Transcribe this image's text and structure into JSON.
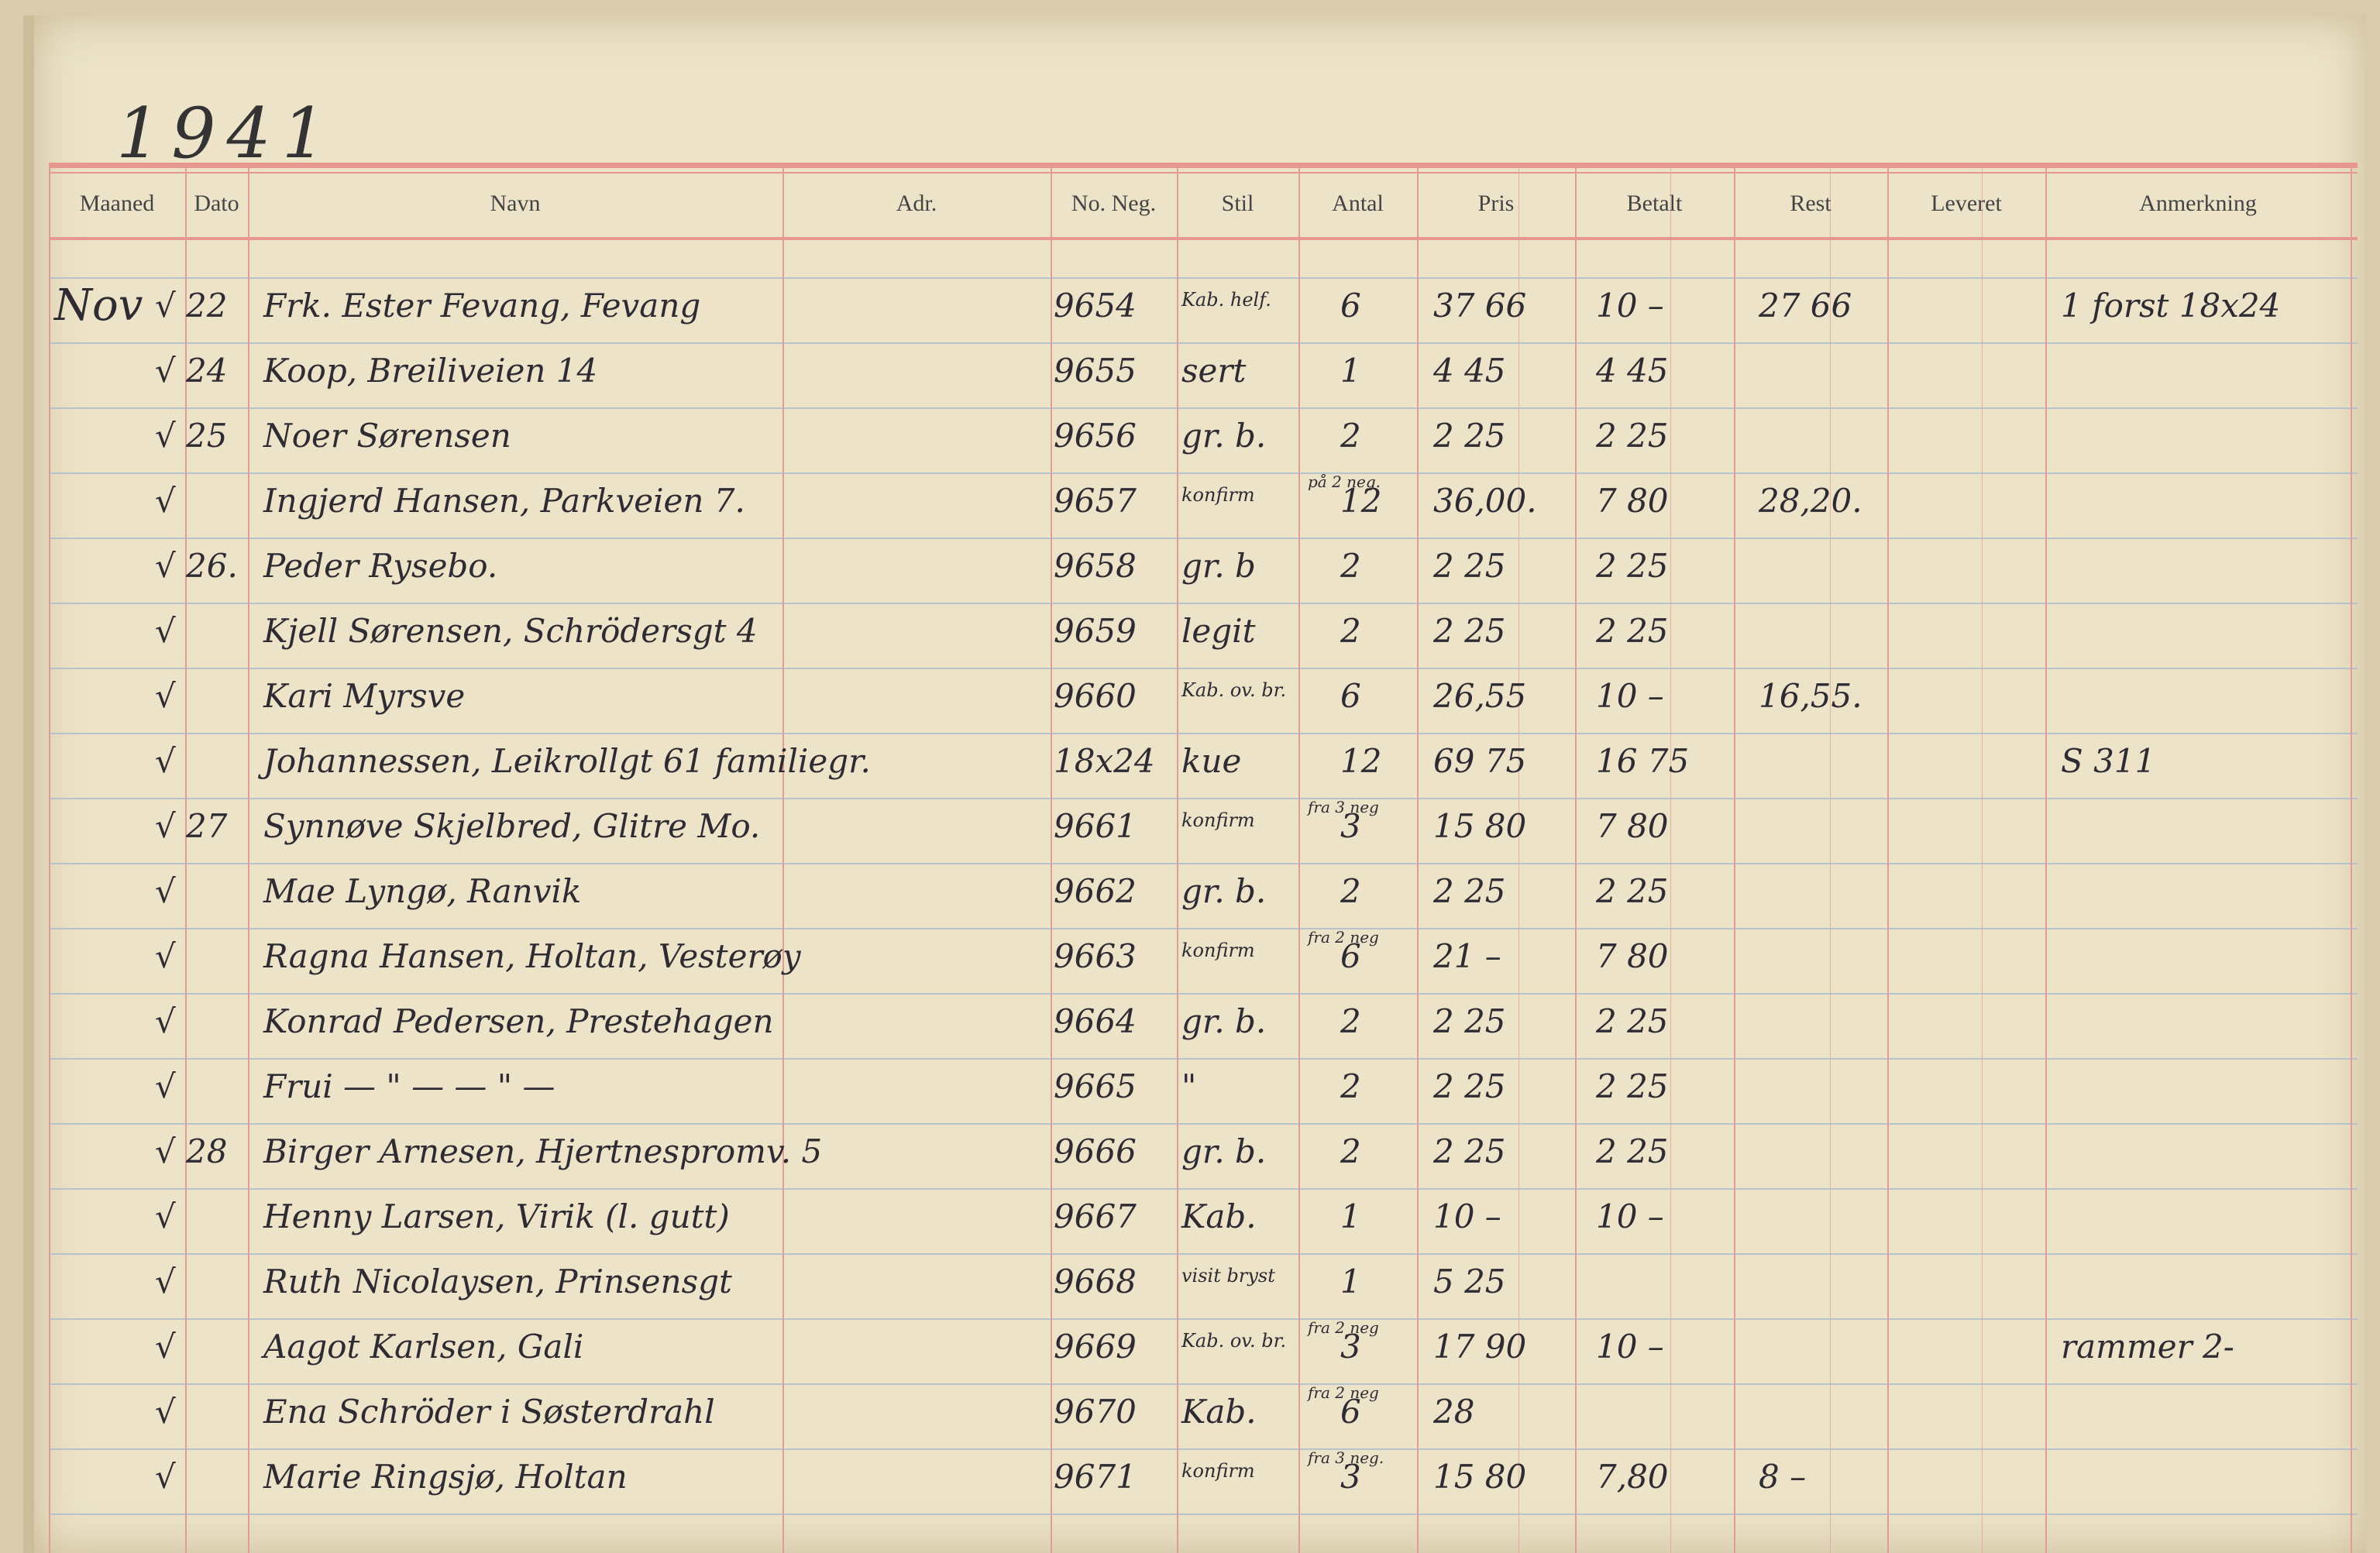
{
  "year": "1941",
  "headers": [
    "Maaned",
    "Dato",
    "Navn",
    "Adr.",
    "No. Neg.",
    "Stil",
    "Antal",
    "Pris",
    "Betalt",
    "Rest",
    "Leveret",
    "Anmerkning"
  ],
  "rows": [
    {
      "maaned": "Nov",
      "check": "√",
      "dato": "22",
      "navn": "Frk. Ester Fevang, Fevang",
      "neg": "9654",
      "stil": "Kab. helf.",
      "antal_note": "",
      "antal": "6",
      "pris": "37 66",
      "betalt": "10 –",
      "rest": "27 66",
      "anm": "1 forst 18x24"
    },
    {
      "maaned": "",
      "check": "√",
      "dato": "24",
      "navn": "Koop, Breiliveien 14",
      "neg": "9655",
      "stil": "sert",
      "antal_note": "",
      "antal": "1",
      "pris": "4 45",
      "betalt": "4 45",
      "rest": "",
      "anm": ""
    },
    {
      "maaned": "",
      "check": "√",
      "dato": "25",
      "navn": "Noer Sørensen",
      "neg": "9656",
      "stil": "gr. b.",
      "antal_note": "",
      "antal": "2",
      "pris": "2 25",
      "betalt": "2 25",
      "rest": "",
      "anm": ""
    },
    {
      "maaned": "",
      "check": "√",
      "dato": "",
      "navn": "Ingjerd Hansen, Parkveien 7.",
      "neg": "9657",
      "stil": "konfirm",
      "antal_note": "på 2 neg.",
      "antal": "12",
      "pris": "36,00.",
      "betalt": "7 80",
      "rest": "28,20.",
      "anm": ""
    },
    {
      "maaned": "",
      "check": "√",
      "dato": "26.",
      "navn": "Peder Rysebo.",
      "neg": "9658",
      "stil": "gr. b",
      "antal_note": "",
      "antal": "2",
      "pris": "2 25",
      "betalt": "2 25",
      "rest": "",
      "anm": ""
    },
    {
      "maaned": "",
      "check": "√",
      "dato": "",
      "navn": "Kjell Sørensen, Schrödersgt 4",
      "neg": "9659",
      "stil": "legit",
      "antal_note": "",
      "antal": "2",
      "pris": "2 25",
      "betalt": "2 25",
      "rest": "",
      "anm": ""
    },
    {
      "maaned": "",
      "check": "√",
      "dato": "",
      "navn": "Kari Myrsve",
      "neg": "9660",
      "stil": "Kab. ov. br.",
      "antal_note": "",
      "antal": "6",
      "pris": "26,55",
      "betalt": "10 –",
      "rest": "16,55.",
      "anm": ""
    },
    {
      "maaned": "",
      "check": "√",
      "dato": "",
      "navn": "Johannessen, Leikrollgt 61   familiegr.",
      "neg": "18x24",
      "stil": "kue",
      "antal_note": "",
      "antal": "12",
      "pris": "69 75",
      "betalt": "16 75",
      "rest": "",
      "anm": "S 311"
    },
    {
      "maaned": "",
      "check": "√",
      "dato": "27",
      "navn": "Synnøve Skjelbred, Glitre Mo.",
      "neg": "9661",
      "stil": "konfirm",
      "antal_note": "fra 3 neg",
      "antal": "3",
      "pris": "15 80",
      "betalt": "7 80",
      "rest": "",
      "anm": ""
    },
    {
      "maaned": "",
      "check": "√",
      "dato": "",
      "navn": "Mae Lyngø, Ranvik",
      "neg": "9662",
      "stil": "gr. b.",
      "antal_note": "",
      "antal": "2",
      "pris": "2 25",
      "betalt": "2 25",
      "rest": "",
      "anm": ""
    },
    {
      "maaned": "",
      "check": "√",
      "dato": "",
      "navn": "Ragna Hansen, Holtan, Vesterøy",
      "neg": "9663",
      "stil": "konfirm",
      "antal_note": "fra 2 neg",
      "antal": "6",
      "pris": "21 –",
      "betalt": "7 80",
      "rest": "",
      "anm": ""
    },
    {
      "maaned": "",
      "check": "√",
      "dato": "",
      "navn": "Konrad Pedersen, Prestehagen",
      "neg": "9664",
      "stil": "gr. b.",
      "antal_note": "",
      "antal": "2",
      "pris": "2 25",
      "betalt": "2 25",
      "rest": "",
      "anm": ""
    },
    {
      "maaned": "",
      "check": "√",
      "dato": "",
      "navn": "Frui  — \" —    — \" —",
      "neg": "9665",
      "stil": "\"",
      "antal_note": "",
      "antal": "2",
      "pris": "2 25",
      "betalt": "2 25",
      "rest": "",
      "anm": ""
    },
    {
      "maaned": "",
      "check": "√",
      "dato": "28",
      "navn": "Birger Arnesen, Hjertnespromv. 5",
      "neg": "9666",
      "stil": "gr. b.",
      "antal_note": "",
      "antal": "2",
      "pris": "2 25",
      "betalt": "2 25",
      "rest": "",
      "anm": ""
    },
    {
      "maaned": "",
      "check": "√",
      "dato": "",
      "navn": "Henny Larsen, Virik  (l. gutt)",
      "neg": "9667",
      "stil": "Kab.",
      "antal_note": "",
      "antal": "1",
      "pris": "10 –",
      "betalt": "10 –",
      "rest": "",
      "anm": ""
    },
    {
      "maaned": "",
      "check": "√",
      "dato": "",
      "navn": "Ruth Nicolaysen, Prinsensgt",
      "neg": "9668",
      "stil": "visit bryst",
      "antal_note": "",
      "antal": "1",
      "pris": "5 25",
      "betalt": "",
      "rest": "",
      "anm": ""
    },
    {
      "maaned": "",
      "check": "√",
      "dato": "",
      "navn": "Aagot Karlsen, Gali",
      "neg": "9669",
      "stil": "Kab. ov. br.",
      "antal_note": "fra 2 neg",
      "antal": "3",
      "pris": "17 90",
      "betalt": "10 –",
      "rest": "",
      "anm": "rammer 2-"
    },
    {
      "maaned": "",
      "check": "√",
      "dato": "",
      "navn": "Ena Schröder    i  Søsterdrahl",
      "neg": "9670",
      "stil": "Kab.",
      "antal_note": "fra 2 neg",
      "antal": "6",
      "pris": "28",
      "betalt": "",
      "rest": "",
      "anm": ""
    },
    {
      "maaned": "",
      "check": "√",
      "dato": "",
      "navn": "Marie Ringsjø, Holtan",
      "neg": "9671",
      "stil": "konfirm",
      "antal_note": "fra 3 neg.",
      "antal": "3",
      "pris": "15 80",
      "betalt": "7,80",
      "rest": "8 –",
      "anm": ""
    }
  ]
}
